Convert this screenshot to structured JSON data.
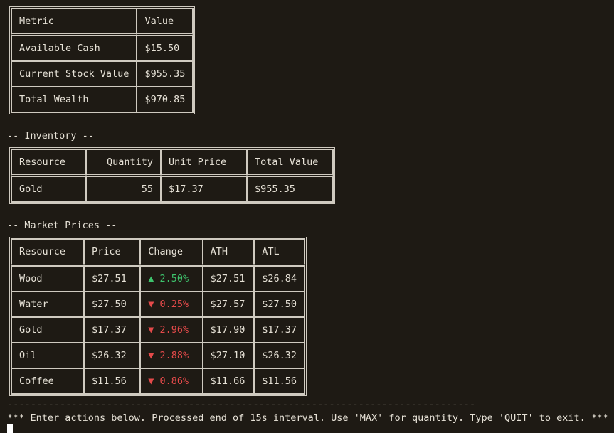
{
  "summary_table": {
    "headers": [
      "Metric",
      "Value"
    ],
    "rows": [
      [
        "Available Cash",
        "$15.50"
      ],
      [
        "Current Stock Value",
        "$955.35"
      ],
      [
        "Total Wealth",
        "$970.85"
      ]
    ]
  },
  "inventory": {
    "title": "-- Inventory --",
    "headers": [
      "Resource",
      "Quantity",
      "Unit Price",
      "Total Value"
    ],
    "rows": [
      [
        "Gold",
        "55",
        "$17.37",
        "$955.35"
      ]
    ]
  },
  "market": {
    "title": "-- Market Prices --",
    "headers": [
      "Resource",
      "Price",
      "Change",
      "ATH",
      "ATL"
    ],
    "rows": [
      {
        "resource": "Wood",
        "price": "$27.51",
        "direction": "up",
        "change": "▲ 2.50%",
        "ath": "$27.51",
        "atl": "$26.84"
      },
      {
        "resource": "Water",
        "price": "$27.50",
        "direction": "down",
        "change": "▼ 0.25%",
        "ath": "$27.57",
        "atl": "$27.50"
      },
      {
        "resource": "Gold",
        "price": "$17.37",
        "direction": "down",
        "change": "▼ 2.96%",
        "ath": "$17.90",
        "atl": "$17.37"
      },
      {
        "resource": "Oil",
        "price": "$26.32",
        "direction": "down",
        "change": "▼ 2.88%",
        "ath": "$27.10",
        "atl": "$26.32"
      },
      {
        "resource": "Coffee",
        "price": "$11.56",
        "direction": "down",
        "change": "▼ 0.86%",
        "ath": "$11.66",
        "atl": "$11.56"
      }
    ]
  },
  "divider": "--------------------------------------------------------------------------------",
  "footer": "*** Enter actions below. Processed end of 15s interval. Use 'MAX' for quantity. Type 'QUIT' to exit. ***",
  "colors": {
    "background": "#1e1a14",
    "text": "#e6e1d6",
    "up": "#3ec46d",
    "down": "#e44a4a"
  }
}
